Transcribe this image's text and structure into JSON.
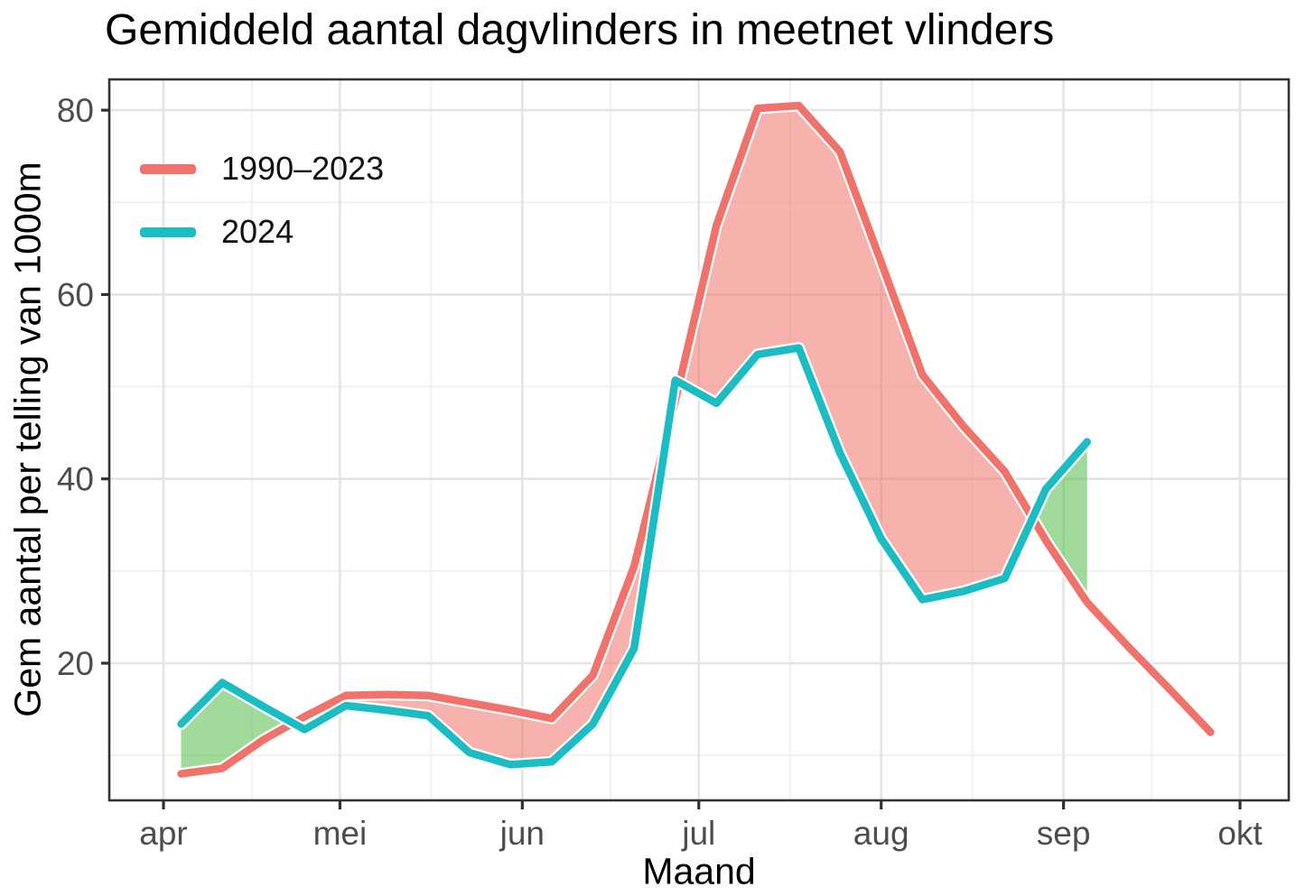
{
  "title": "Gemiddeld aantal dagvlinders in meetnet vlinders",
  "axes": {
    "x_label": "Maand",
    "y_label": "Gem aantal per telling van 1000m",
    "x_tick_labels": [
      "apr",
      "mei",
      "jun",
      "jul",
      "aug",
      "sep",
      "okt"
    ],
    "y_tick_labels": [
      "20",
      "40",
      "60",
      "80"
    ]
  },
  "legend": {
    "items": [
      {
        "label": "1990–2023",
        "color": "#F1726B"
      },
      {
        "label": "2024",
        "color": "#1CBDC2"
      }
    ]
  },
  "chart_data": {
    "type": "line",
    "title": "Gemiddeld aantal dagvlinders in meetnet vlinders",
    "xlabel": "Maand",
    "ylabel": "Gem aantal per telling van 1000m",
    "grid": "on",
    "legend_position": "inside top-left",
    "ylim": [
      4.8,
      83.3
    ],
    "y_ticks": [
      20,
      40,
      60,
      80
    ],
    "y_minor_ticks": [
      10,
      30,
      50,
      70
    ],
    "month_ticks": [
      {
        "label": "apr",
        "day": 0
      },
      {
        "label": "mei",
        "day": 30
      },
      {
        "label": "jun",
        "day": 61
      },
      {
        "label": "jul",
        "day": 91
      },
      {
        "label": "aug",
        "day": 122
      },
      {
        "label": "sep",
        "day": 153
      },
      {
        "label": "okt",
        "day": 183
      }
    ],
    "x_unit": "dag van seizoen (0 = begin apr), wekelijkse punten",
    "week_days": [
      3,
      10,
      17,
      24,
      31,
      38,
      45,
      52,
      59,
      66,
      73,
      80,
      87,
      94,
      101,
      108,
      115,
      122,
      129,
      136,
      143,
      150,
      157,
      164,
      171,
      178
    ],
    "series": [
      {
        "name": "1990–2023",
        "color": "#F1726B",
        "values": [
          8.0,
          8.6,
          11.7,
          14.2,
          16.5,
          16.6,
          16.5,
          15.7,
          14.9,
          14.0,
          18.7,
          30.5,
          48.5,
          67.5,
          80.2,
          80.5,
          75.5,
          63.5,
          51.3,
          45.7,
          40.8,
          33.3,
          26.6,
          21.8,
          17.2,
          12.5
        ]
      },
      {
        "name": "2024",
        "color": "#1CBDC2",
        "values": [
          13.4,
          17.9,
          15.3,
          12.8,
          15.4,
          14.9,
          14.3,
          10.3,
          9.0,
          9.3,
          13.4,
          21.6,
          50.7,
          48.2,
          53.5,
          54.2,
          42.8,
          33.5,
          26.9,
          27.8,
          29.2,
          38.9,
          44.0
        ]
      }
    ],
    "fill_between": {
      "historical_above_color": "rgba(241,114,107,0.55)",
      "recent_above_color": "rgba(84,190,75,0.55)"
    },
    "colors": {
      "panel_border": "#333333",
      "tick": "#333333",
      "tick_label": "#4D4D4D",
      "grid_major": "#E4E4E4",
      "grid_minor": "#F1F1F1",
      "line_halo": "#FFFFFF"
    }
  }
}
